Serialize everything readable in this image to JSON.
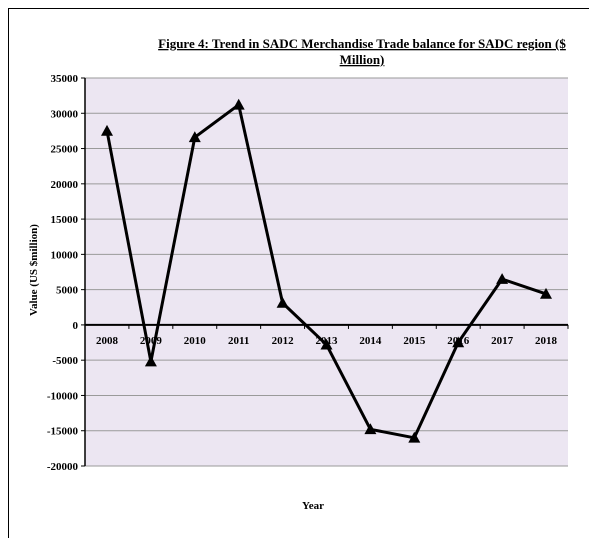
{
  "chart_data": {
    "type": "line",
    "title_line1": "Figure  4: Trend  in SADC Merchandise  Trade balance for SADC region ($",
    "title_line2": "Million)",
    "xlabel": "Year",
    "ylabel": "Value (US $million)",
    "categories": [
      "2008",
      "2009",
      "2010",
      "2011",
      "2012",
      "2013",
      "2014",
      "2015",
      "2016",
      "2017",
      "2018"
    ],
    "series": [
      {
        "values": [
          27500,
          -5200,
          26600,
          31200,
          3100,
          -2800,
          -14800,
          -16000,
          -2500,
          6500,
          4400
        ]
      }
    ],
    "ylim": [
      -20000,
      35000
    ],
    "yticks": [
      35000,
      30000,
      25000,
      20000,
      15000,
      10000,
      5000,
      0,
      -5000,
      -10000,
      -15000,
      -20000
    ],
    "grid": true,
    "colors": {
      "plot_background": "#ece6f2",
      "line": "#000000",
      "gridline": "#9a9a9a"
    }
  }
}
